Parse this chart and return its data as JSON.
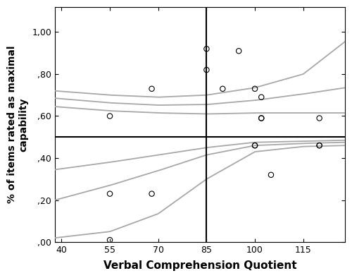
{
  "scatter_data": [
    [
      55,
      0.6
    ],
    [
      55,
      0.23
    ],
    [
      55,
      0.01
    ],
    [
      68,
      0.73
    ],
    [
      68,
      0.23
    ],
    [
      85,
      0.92
    ],
    [
      85,
      0.82
    ],
    [
      90,
      0.73
    ],
    [
      95,
      0.91
    ],
    [
      100,
      0.73
    ],
    [
      100,
      0.46
    ],
    [
      100,
      0.46
    ],
    [
      102,
      0.69
    ],
    [
      102,
      0.59
    ],
    [
      102,
      0.59
    ],
    [
      105,
      0.32
    ],
    [
      120,
      0.59
    ],
    [
      120,
      0.46
    ],
    [
      120,
      0.46
    ]
  ],
  "upper_curve_points": [
    [
      38,
      0.685
    ],
    [
      55,
      0.663
    ],
    [
      70,
      0.652
    ],
    [
      85,
      0.655
    ],
    [
      100,
      0.675
    ],
    [
      115,
      0.705
    ],
    [
      128,
      0.735
    ]
  ],
  "upper_ci_high_points": [
    [
      38,
      0.72
    ],
    [
      55,
      0.7
    ],
    [
      70,
      0.69
    ],
    [
      85,
      0.7
    ],
    [
      100,
      0.735
    ],
    [
      115,
      0.8
    ],
    [
      128,
      0.955
    ]
  ],
  "upper_ci_low_points": [
    [
      38,
      0.645
    ],
    [
      55,
      0.625
    ],
    [
      70,
      0.615
    ],
    [
      85,
      0.61
    ],
    [
      100,
      0.615
    ],
    [
      115,
      0.615
    ],
    [
      128,
      0.615
    ]
  ],
  "lower_curve_points": [
    [
      38,
      0.2
    ],
    [
      55,
      0.27
    ],
    [
      70,
      0.34
    ],
    [
      85,
      0.415
    ],
    [
      100,
      0.46
    ],
    [
      115,
      0.47
    ],
    [
      128,
      0.475
    ]
  ],
  "lower_ci_high_points": [
    [
      38,
      0.345
    ],
    [
      55,
      0.38
    ],
    [
      70,
      0.415
    ],
    [
      85,
      0.45
    ],
    [
      100,
      0.475
    ],
    [
      115,
      0.48
    ],
    [
      128,
      0.485
    ]
  ],
  "lower_ci_low_points": [
    [
      38,
      0.02
    ],
    [
      55,
      0.05
    ],
    [
      70,
      0.135
    ],
    [
      85,
      0.3
    ],
    [
      100,
      0.43
    ],
    [
      115,
      0.455
    ],
    [
      128,
      0.46
    ]
  ],
  "xlabel": "Verbal Comprehension Quotient",
  "ylabel": "% of items rated as maximal\ncapability",
  "xlim": [
    38,
    128
  ],
  "ylim": [
    0.0,
    1.12
  ],
  "xticks": [
    40,
    55,
    70,
    85,
    100,
    115
  ],
  "yticks": [
    0.0,
    0.2,
    0.4,
    0.6,
    0.8,
    1.0
  ],
  "yticklabels": [
    ",00",
    ",20",
    ",40",
    ",60",
    ",80",
    "1,00"
  ],
  "vline_x": 85,
  "hline_y": 0.5,
  "line_color": "#a8a8a8",
  "ref_line_color": "#000000",
  "background_color": "#ffffff"
}
